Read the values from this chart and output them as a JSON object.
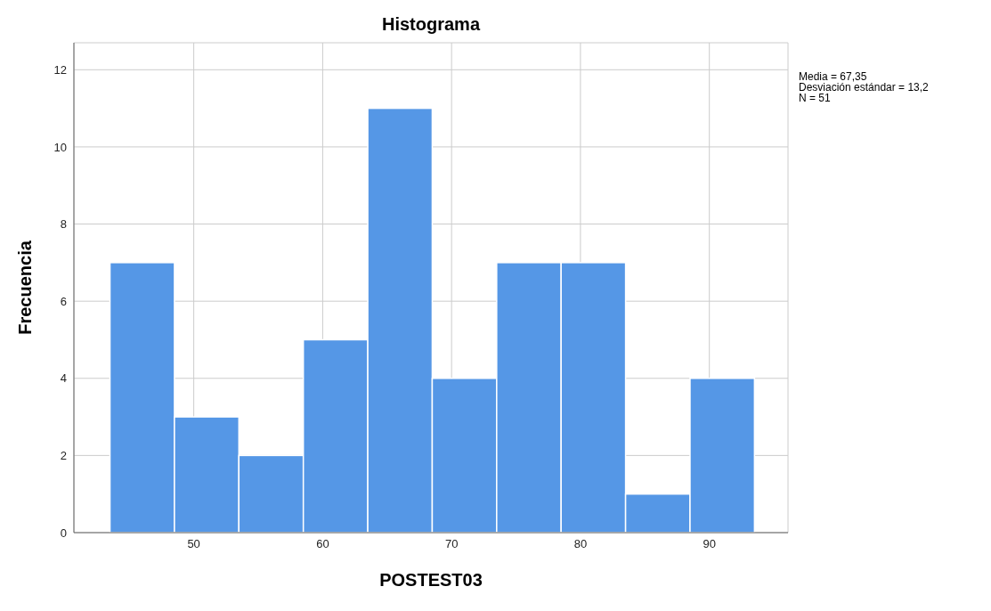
{
  "chart_data": {
    "type": "histogram",
    "title": "Histograma",
    "xlabel": "POSTEST03",
    "ylabel": "Frecuencia",
    "bins": [
      43.5,
      48.5,
      53.5,
      58.5,
      63.5,
      68.5,
      73.5,
      78.5,
      83.5,
      88.5,
      93.5
    ],
    "values": [
      7,
      3,
      2,
      5,
      11,
      4,
      7,
      7,
      1,
      4
    ],
    "color": "#5597e6",
    "xlim": [
      40.7,
      96.1
    ],
    "xticks": [
      50,
      60,
      70,
      80,
      90
    ],
    "ylim": [
      0,
      12.7
    ],
    "yticks": [
      0,
      2,
      4,
      6,
      8,
      10,
      12
    ],
    "grid": true,
    "annotations": [
      "Media = 67,35",
      "Desviación estándar = 13,2",
      "N = 51"
    ]
  }
}
